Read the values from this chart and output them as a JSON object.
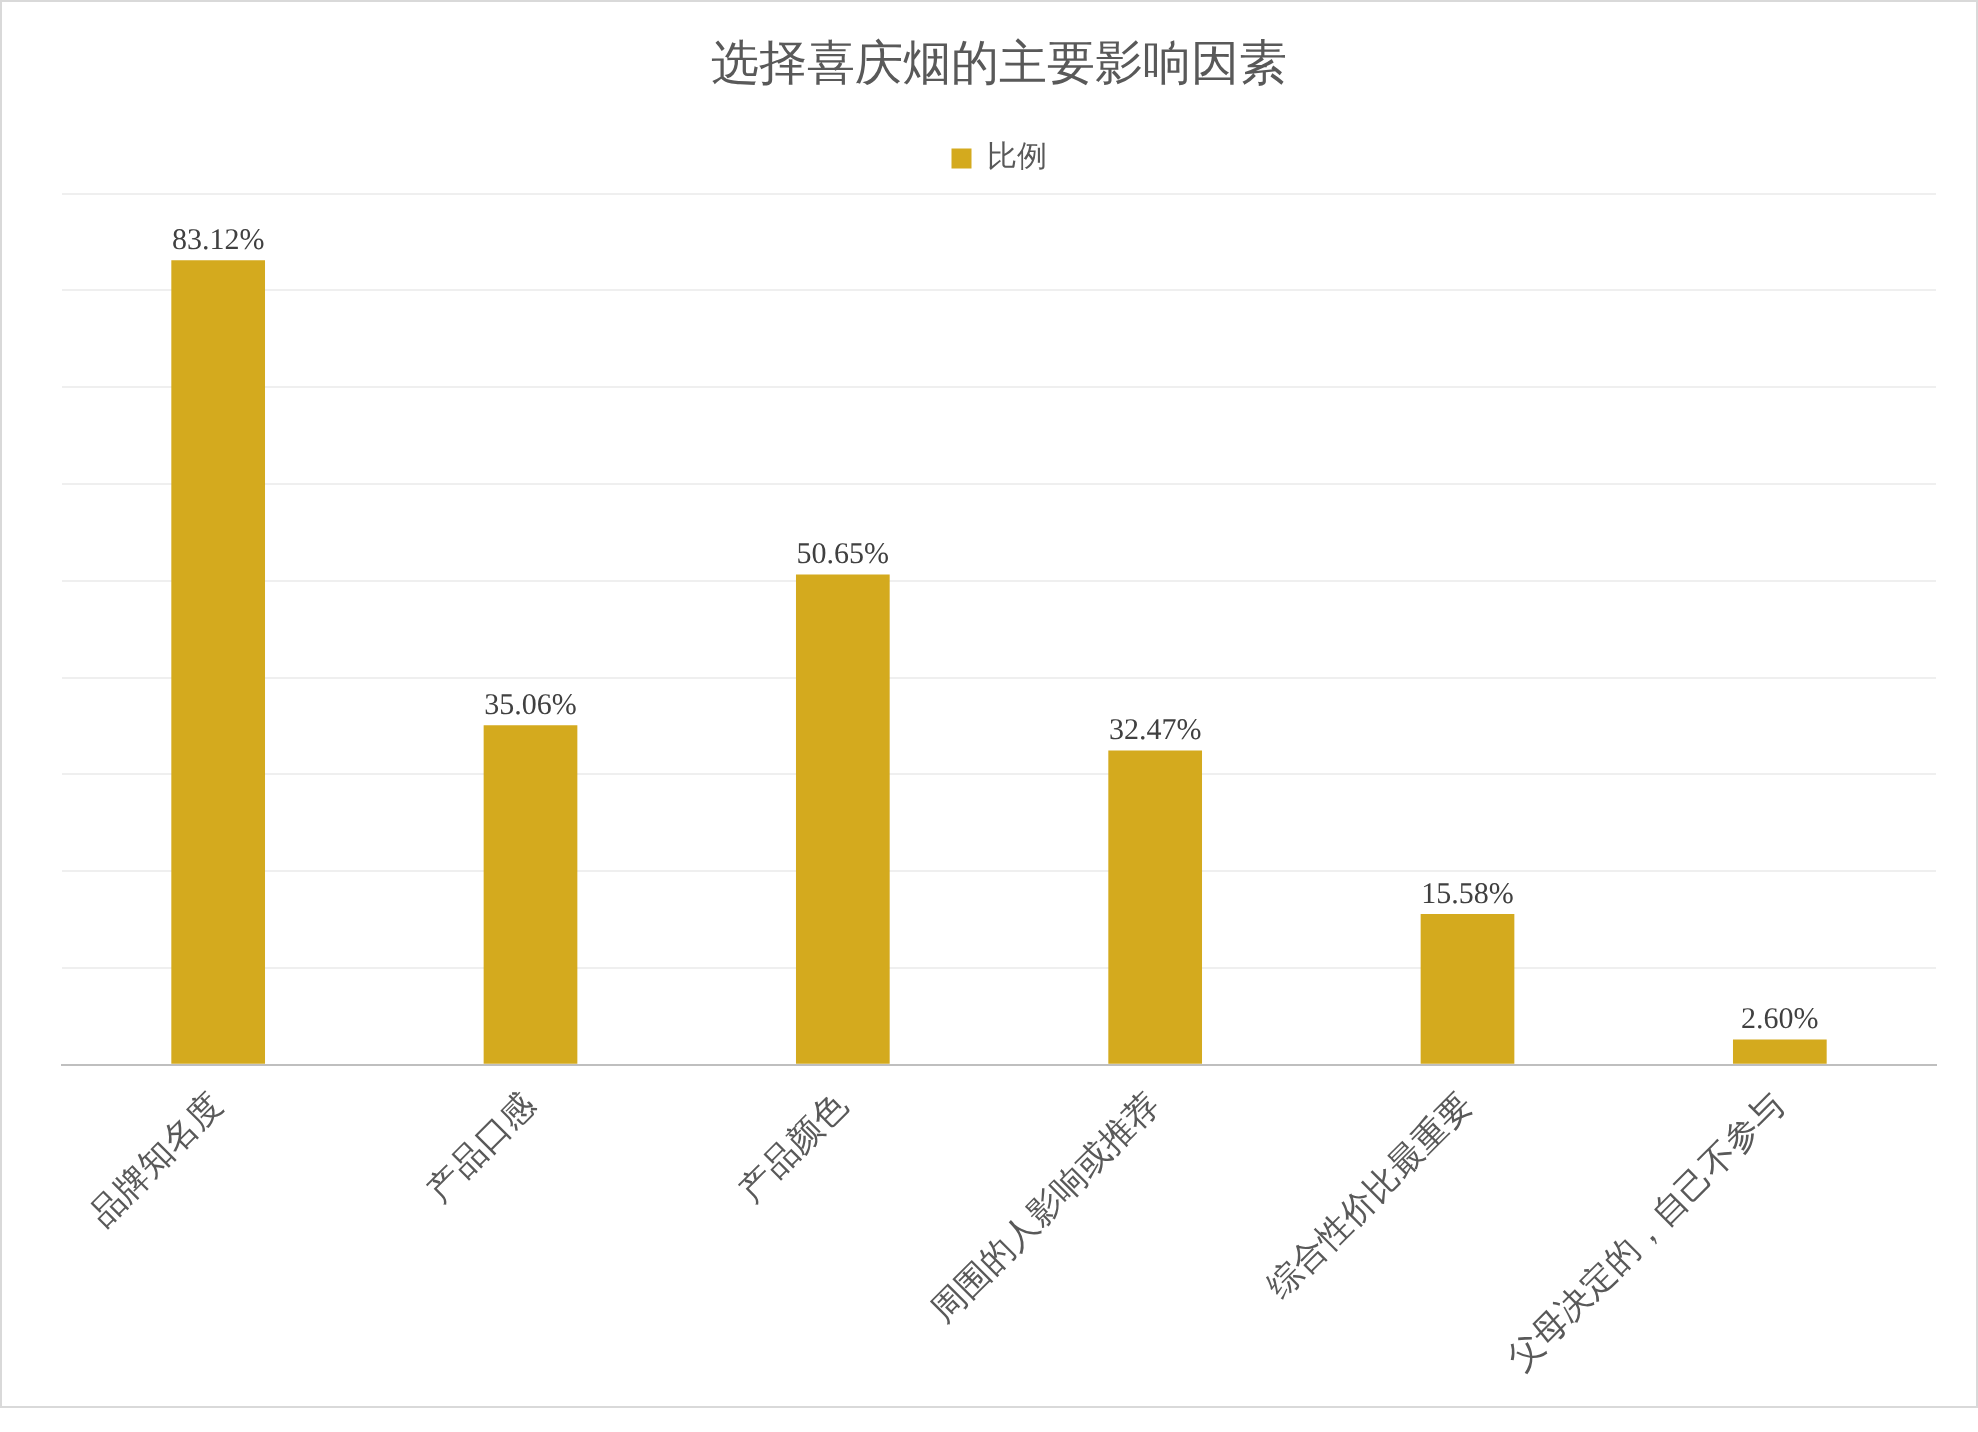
{
  "chart_data": {
    "type": "bar",
    "title": "选择喜庆烟的主要影响因素",
    "categories": [
      "品牌知名度",
      "产品口感",
      "产品颜色",
      "周围的人影响或推荐",
      "综合性价比最重要",
      "父母决定的，自己不参与"
    ],
    "series": [
      {
        "name": "比例",
        "color": "#d4aa1e",
        "values": [
          83.12,
          35.06,
          50.65,
          32.47,
          15.58,
          2.6
        ],
        "value_labels": [
          "83.12%",
          "35.06%",
          "50.65%",
          "32.47%",
          "15.58%",
          "2.60%"
        ]
      }
    ],
    "tick_labels": "x",
    "grid": "y",
    "legend": "top"
  }
}
